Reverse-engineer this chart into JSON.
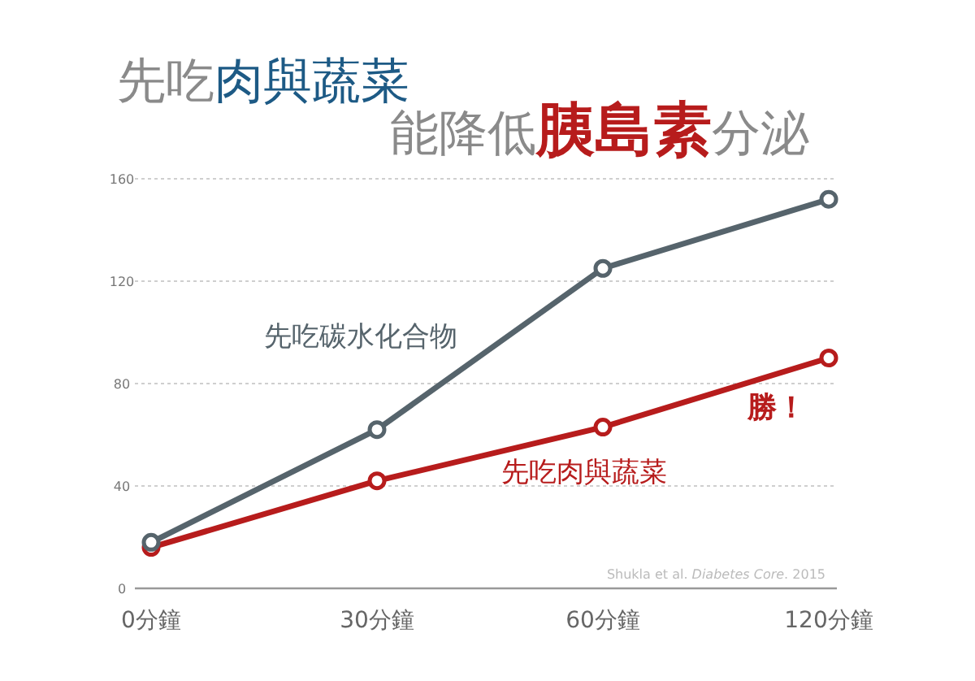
{
  "chart_data": {
    "type": "line",
    "title": "先吃**肉與蔬菜**",
    "subtitle": "能降低**胰島素**分泌",
    "categories": [
      "0分鐘",
      "30分鐘",
      "60分鐘",
      "120分鐘"
    ],
    "series": [
      {
        "name": "先吃碳水化合物",
        "color": "#56646c",
        "values": [
          18,
          62,
          125,
          152
        ]
      },
      {
        "name": "先吃肉與蔬菜",
        "color": "#b71c1c",
        "values": [
          16,
          42,
          63,
          90
        ]
      }
    ],
    "annotations": [
      {
        "text": "勝！",
        "x": "120分鐘",
        "y": 90
      },
      "Shukla et al. *Diabetes Core*. 2015"
    ],
    "ylim": [
      0,
      160
    ],
    "yticks": [
      0,
      40,
      80,
      120,
      160
    ],
    "grid": "y",
    "marker": "circle",
    "line_style": "solid"
  }
}
